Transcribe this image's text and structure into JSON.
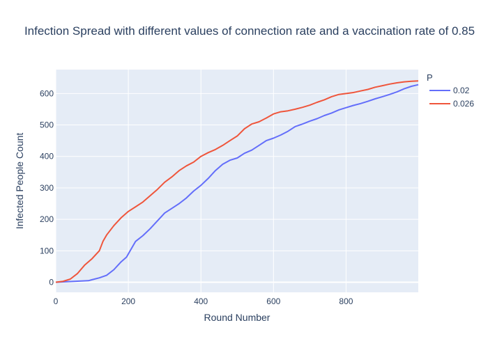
{
  "chart_data": {
    "type": "line",
    "title": "Infection Spread with different values of connection rate and a vaccination rate of 0.85",
    "xlabel": "Round Number",
    "ylabel": "Infected People Count",
    "xlim": [
      0,
      999
    ],
    "ylim": [
      -32,
      676
    ],
    "x_ticks": [
      0,
      200,
      400,
      600,
      800
    ],
    "y_ticks": [
      0,
      100,
      200,
      300,
      400,
      500,
      600
    ],
    "grid": true,
    "legend": {
      "title": "P",
      "placement": "right"
    },
    "colors": {
      "plot_bg": "#e5ecf6",
      "grid": "#ffffff",
      "text": "#2a3f5f"
    },
    "series": [
      {
        "name": "0.02",
        "color": "#636efa",
        "x": [
          0,
          50,
          90,
          100,
          120,
          140,
          160,
          180,
          195,
          210,
          220,
          240,
          260,
          280,
          300,
          320,
          340,
          360,
          380,
          400,
          420,
          440,
          460,
          480,
          500,
          520,
          540,
          560,
          580,
          600,
          620,
          640,
          660,
          680,
          700,
          720,
          740,
          760,
          780,
          800,
          820,
          840,
          860,
          880,
          900,
          920,
          940,
          960,
          980,
          999
        ],
        "y": [
          0,
          3,
          5,
          8,
          14,
          22,
          40,
          65,
          80,
          110,
          130,
          148,
          170,
          195,
          220,
          235,
          250,
          268,
          290,
          308,
          330,
          355,
          375,
          388,
          395,
          410,
          420,
          435,
          450,
          458,
          468,
          480,
          495,
          503,
          512,
          520,
          530,
          538,
          548,
          555,
          562,
          568,
          575,
          583,
          590,
          597,
          605,
          615,
          623,
          628
        ]
      },
      {
        "name": "0.026",
        "color": "#ef553b",
        "x": [
          0,
          20,
          40,
          60,
          80,
          100,
          120,
          130,
          140,
          160,
          180,
          200,
          220,
          240,
          260,
          280,
          300,
          320,
          340,
          360,
          380,
          400,
          420,
          440,
          460,
          480,
          500,
          520,
          540,
          560,
          580,
          600,
          620,
          640,
          660,
          680,
          700,
          720,
          740,
          760,
          780,
          800,
          820,
          840,
          860,
          880,
          900,
          920,
          940,
          960,
          980,
          999
        ],
        "y": [
          0,
          3,
          10,
          28,
          55,
          75,
          100,
          130,
          150,
          180,
          205,
          225,
          240,
          255,
          275,
          295,
          318,
          335,
          355,
          370,
          382,
          400,
          412,
          422,
          435,
          450,
          465,
          488,
          503,
          510,
          522,
          535,
          542,
          545,
          550,
          556,
          563,
          572,
          580,
          590,
          597,
          600,
          603,
          608,
          613,
          620,
          625,
          630,
          634,
          637,
          639,
          640
        ]
      }
    ]
  }
}
